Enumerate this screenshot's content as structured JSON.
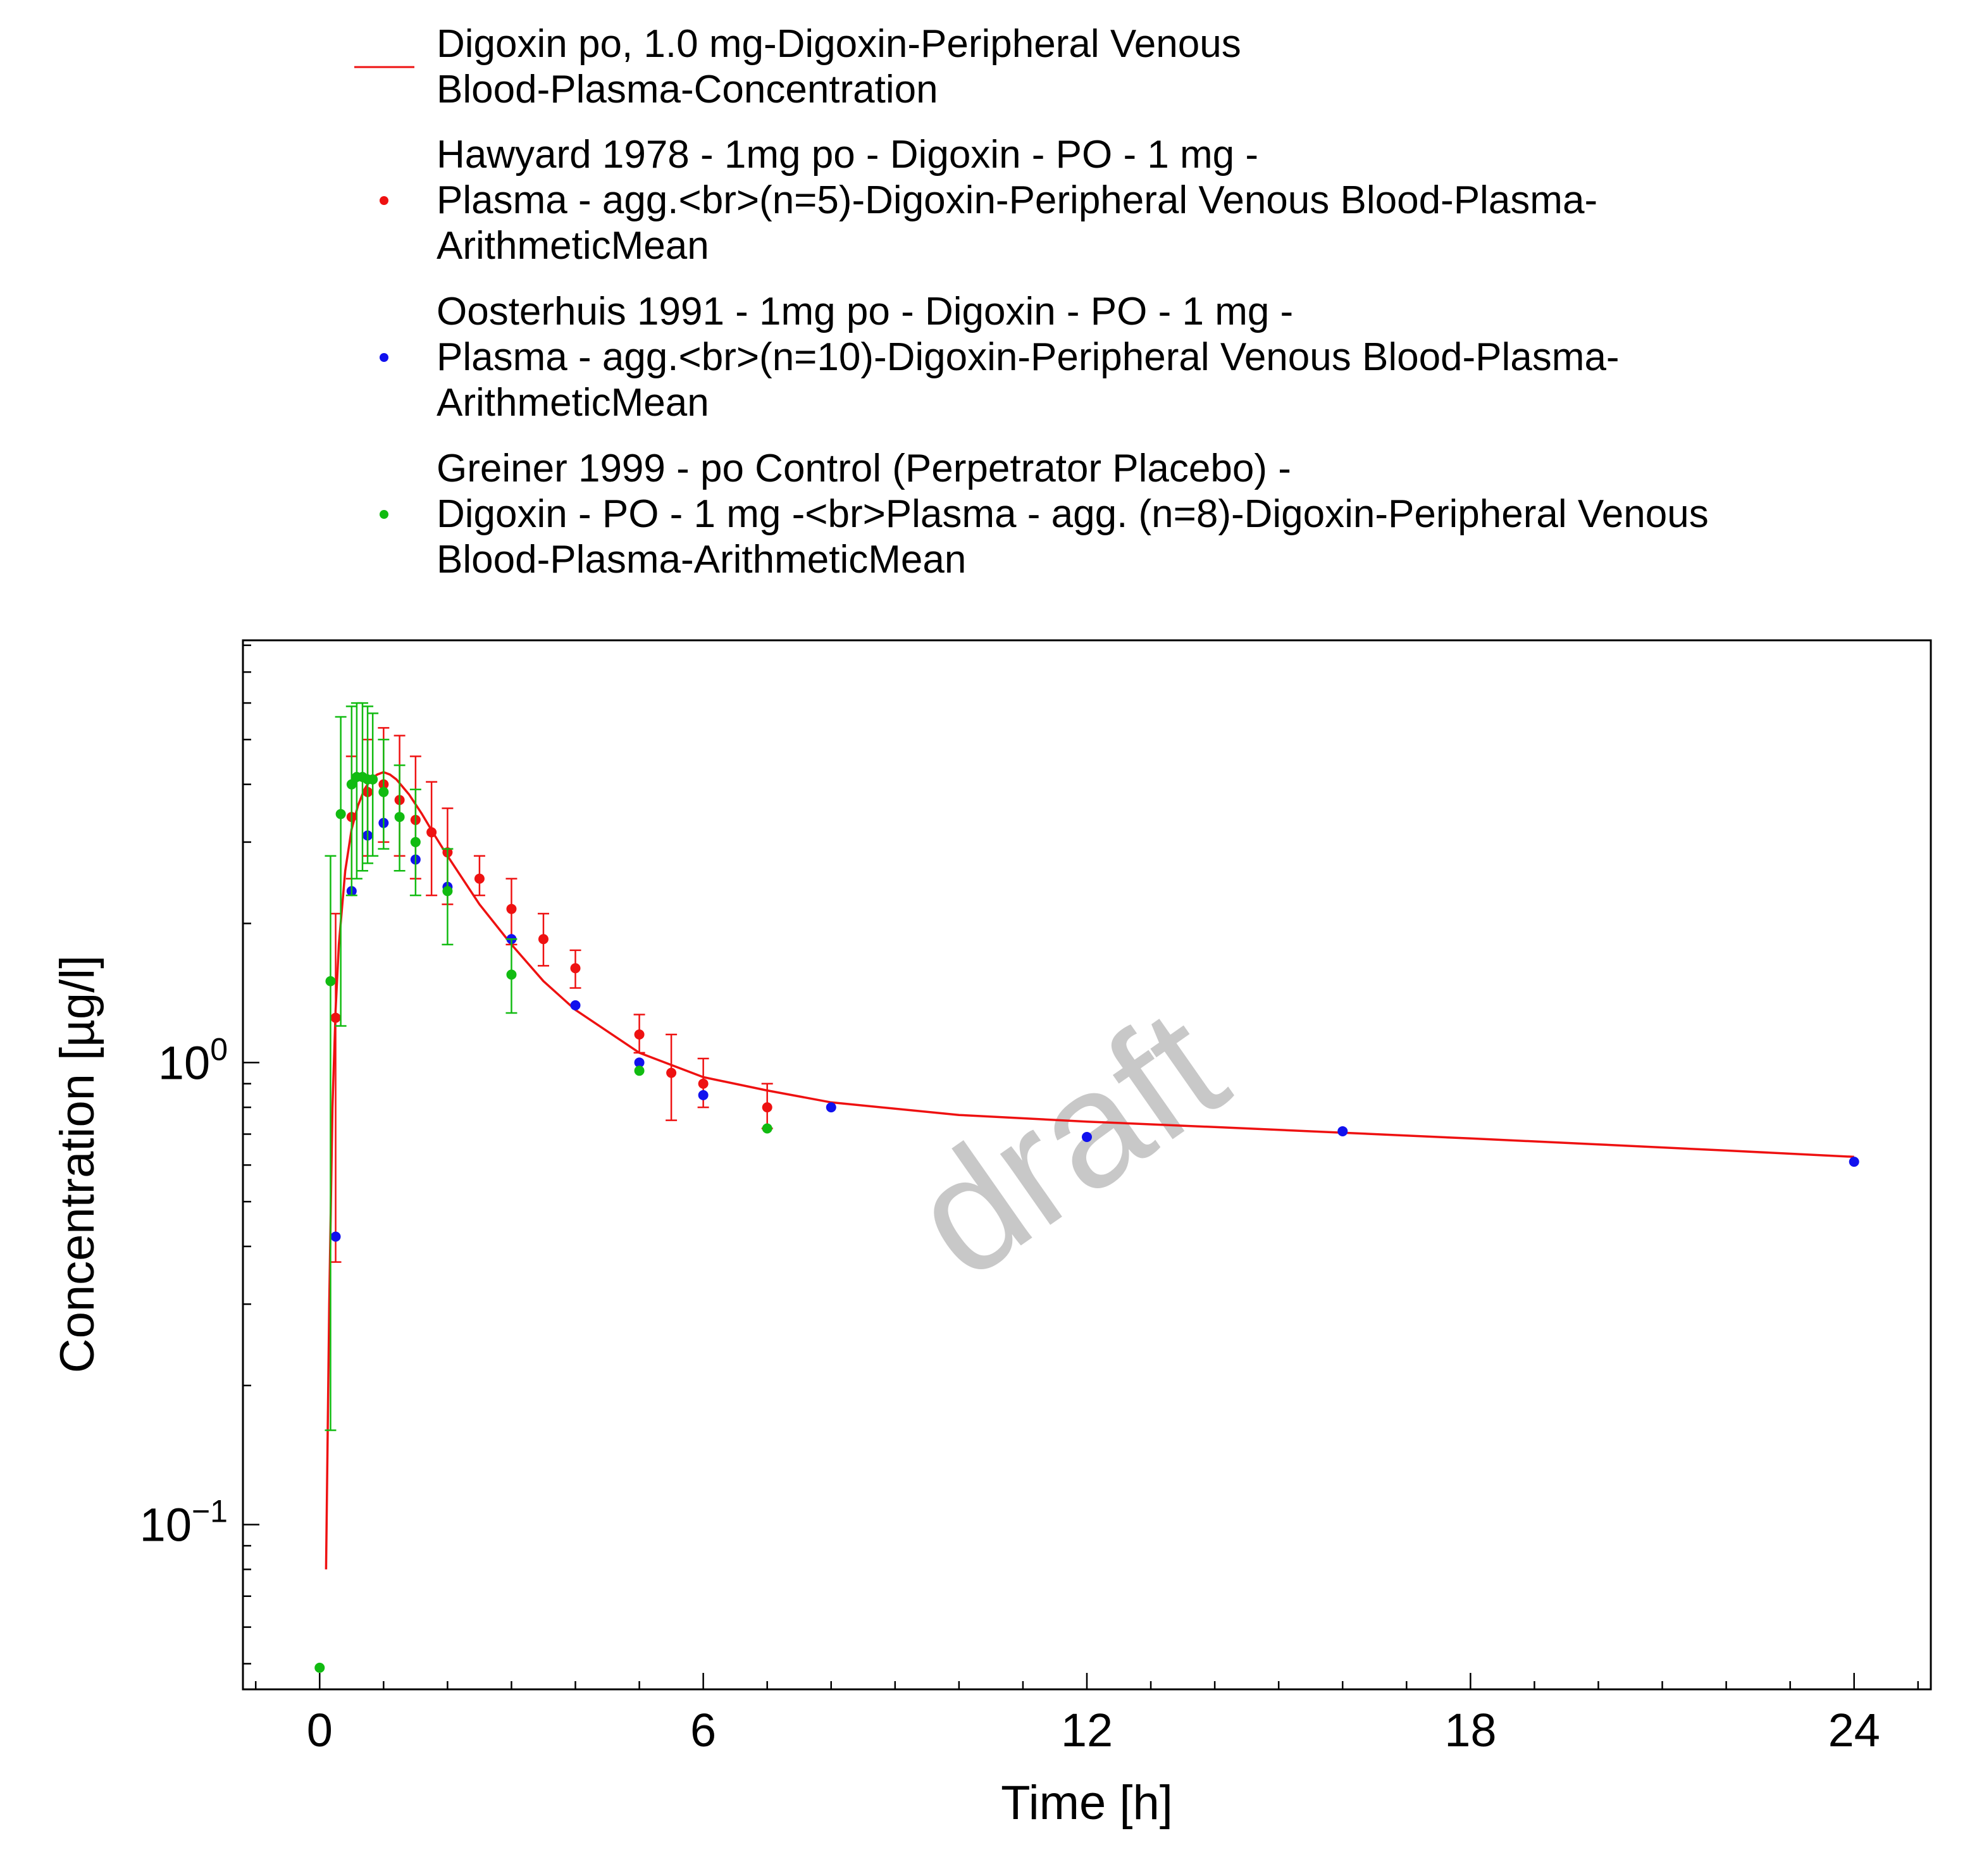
{
  "chart_data": {
    "type": "scatter",
    "xlabel": "Time [h]",
    "ylabel": "Concentration [µg/l]",
    "xlim": [
      -1.2,
      25.2
    ],
    "ylim": [
      0.044,
      8.2
    ],
    "y_scale": "log",
    "x_ticks": [
      0,
      6,
      12,
      18,
      24
    ],
    "x_tick_labels": [
      "0",
      "6",
      "12",
      "18",
      "24"
    ],
    "y_ticks": [
      0.1,
      1
    ],
    "y_tick_labels": [
      {
        "base": "10",
        "exp": "−1"
      },
      {
        "base": "10",
        "exp": "0"
      }
    ],
    "grid": false,
    "legend_position": "top",
    "watermark": "draft",
    "colors": {
      "red": "#ee1111",
      "blue": "#1111ee",
      "green": "#11bb11"
    },
    "series": [
      {
        "name": [
          "Digoxin po, 1.0 mg-Digoxin-Peripheral Venous",
          "Blood-Plasma-Concentration"
        ],
        "kind": "line",
        "color": "#ee1111",
        "x": [
          0.1,
          0.15,
          0.2,
          0.25,
          0.3,
          0.4,
          0.5,
          0.6,
          0.7,
          0.8,
          0.9,
          1.0,
          1.1,
          1.2,
          1.4,
          1.6,
          1.8,
          2.0,
          2.5,
          3.0,
          3.5,
          4.0,
          5.0,
          6.0,
          7.0,
          8.0,
          10.0,
          12.0,
          14.0,
          16.0,
          18.0,
          20.0,
          22.0,
          24.0
        ],
        "y": [
          0.08,
          0.3,
          0.8,
          1.3,
          1.8,
          2.6,
          3.2,
          3.6,
          3.9,
          4.1,
          4.2,
          4.25,
          4.2,
          4.1,
          3.8,
          3.45,
          3.1,
          2.8,
          2.2,
          1.8,
          1.5,
          1.3,
          1.05,
          0.93,
          0.87,
          0.82,
          0.77,
          0.745,
          0.725,
          0.705,
          0.685,
          0.665,
          0.645,
          0.625
        ]
      },
      {
        "name": [
          "Hawyard 1978 - 1mg po - Digoxin - PO - 1 mg -",
          "Plasma - agg.<br>(n=5)-Digoxin-Peripheral Venous Blood-Plasma-",
          "ArithmeticMean"
        ],
        "kind": "points",
        "color": "#ee1111",
        "x": [
          0.25,
          0.5,
          0.75,
          1.0,
          1.25,
          1.5,
          1.75,
          2.0,
          2.5,
          3.0,
          3.5,
          4.0,
          5.0,
          5.5,
          6.0,
          7.0
        ],
        "y": [
          1.25,
          3.4,
          3.85,
          4.0,
          3.7,
          3.35,
          3.15,
          2.85,
          2.5,
          2.15,
          1.85,
          1.6,
          1.15,
          0.95,
          0.9,
          0.8
        ],
        "err_low": [
          0.37,
          2.5,
          2.8,
          3.0,
          2.8,
          2.5,
          2.3,
          2.2,
          2.3,
          1.8,
          1.62,
          1.45,
          1.05,
          0.75,
          0.8,
          0.72
        ],
        "err_high": [
          2.1,
          4.6,
          5.0,
          5.3,
          5.1,
          4.6,
          4.05,
          3.55,
          2.8,
          2.5,
          2.1,
          1.75,
          1.27,
          1.15,
          1.02,
          0.9
        ]
      },
      {
        "name": [
          "Oosterhuis 1991 - 1mg po - Digoxin - PO - 1 mg -",
          "Plasma - agg.<br>(n=10)-Digoxin-Peripheral Venous Blood-Plasma-",
          "ArithmeticMean"
        ],
        "kind": "points",
        "color": "#1111ee",
        "x": [
          0.25,
          0.5,
          0.75,
          1.0,
          1.5,
          2.0,
          3.0,
          4.0,
          5.0,
          6.0,
          8.0,
          12.0,
          16.0,
          24.0
        ],
        "y": [
          0.42,
          2.35,
          3.1,
          3.3,
          2.75,
          2.4,
          1.85,
          1.33,
          1.0,
          0.85,
          0.8,
          0.69,
          0.71,
          0.61
        ]
      },
      {
        "name": [
          "Greiner 1999 - po Control (Perpetrator Placebo) -",
          "Digoxin - PO - 1 mg -<br>Plasma - agg. (n=8)-Digoxin-Peripheral Venous",
          "Blood-Plasma-ArithmeticMean"
        ],
        "kind": "points",
        "color": "#11bb11",
        "x": [
          0.0,
          0.17,
          0.33,
          0.5,
          0.58,
          0.67,
          0.75,
          0.83,
          1.0,
          1.25,
          1.5,
          2.0,
          3.0,
          5.0,
          7.0
        ],
        "y": [
          0.049,
          1.5,
          3.45,
          4.0,
          4.15,
          4.15,
          4.1,
          4.1,
          3.85,
          3.4,
          3.0,
          2.35,
          1.55,
          0.96,
          0.72
        ],
        "err_low": [
          0.049,
          0.16,
          1.2,
          2.3,
          2.5,
          2.6,
          2.7,
          2.8,
          2.9,
          2.6,
          2.3,
          1.8,
          1.28,
          0.96,
          0.72
        ],
        "err_high": [
          0.049,
          2.8,
          5.6,
          5.9,
          6.0,
          6.0,
          5.9,
          5.7,
          5.0,
          4.4,
          3.9,
          2.9,
          1.85,
          0.96,
          0.72
        ]
      }
    ]
  }
}
